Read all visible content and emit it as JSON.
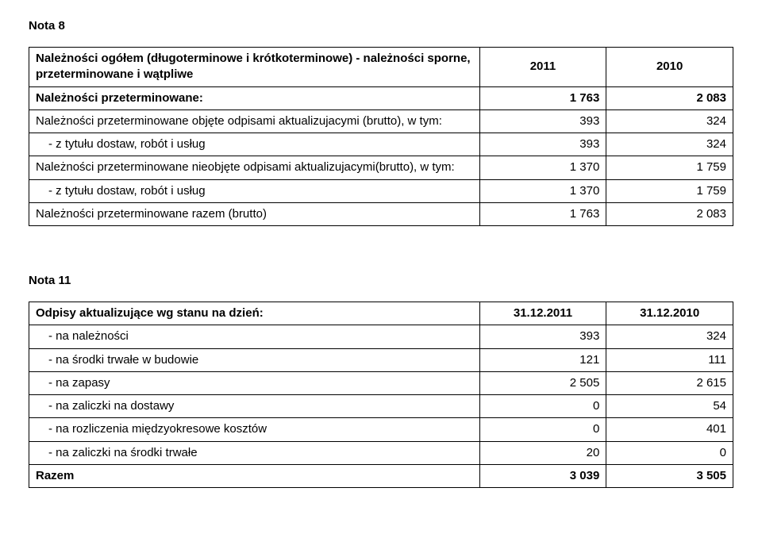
{
  "nota8": {
    "heading": "Nota 8",
    "header_label": "Należności ogółem (długoterminowe i krótkoterminowe) - należności sporne, przeterminowane i wątpliwe",
    "col1": "2011",
    "col2": "2010",
    "rows": [
      {
        "label": "Należności przeterminowane:",
        "v1": "1 763",
        "v2": "2 083",
        "bold": true
      },
      {
        "label": "Należności przeterminowane objęte odpisami aktualizujacymi (brutto), w tym:",
        "v1": "393",
        "v2": "324",
        "bold": false
      },
      {
        "label": "- z tytułu dostaw, robót i usług",
        "v1": "393",
        "v2": "324",
        "indent": true
      },
      {
        "label": "Należności przeterminowane nieobjęte odpisami aktualizujacymi(brutto), w tym:",
        "v1": "1 370",
        "v2": "1 759",
        "bold": false
      },
      {
        "label": "- z tytułu dostaw, robót i usług",
        "v1": "1 370",
        "v2": "1 759",
        "indent": true
      },
      {
        "label": "Należności przeterminowane razem (brutto)",
        "v1": "1 763",
        "v2": "2 083",
        "bold": false
      }
    ]
  },
  "nota11": {
    "heading": "Nota 11",
    "header_label": "Odpisy aktualizujące wg stanu na dzień:",
    "col1": "31.12.2011",
    "col2": "31.12.2010",
    "rows": [
      {
        "label": "- na należności",
        "v1": "393",
        "v2": "324",
        "indent": true
      },
      {
        "label": "- na środki trwałe w budowie",
        "v1": "121",
        "v2": "111",
        "indent": true
      },
      {
        "label": "- na zapasy",
        "v1": "2 505",
        "v2": "2 615",
        "indent": true
      },
      {
        "label": "- na zaliczki na dostawy",
        "v1": "0",
        "v2": "54",
        "indent": true
      },
      {
        "label": "- na rozliczenia międzyokresowe kosztów",
        "v1": "0",
        "v2": "401",
        "indent": true
      },
      {
        "label": "- na zaliczki na środki trwałe",
        "v1": "20",
        "v2": "0",
        "indent": true
      }
    ],
    "total_label": "Razem",
    "total_v1": "3 039",
    "total_v2": "3 505"
  }
}
